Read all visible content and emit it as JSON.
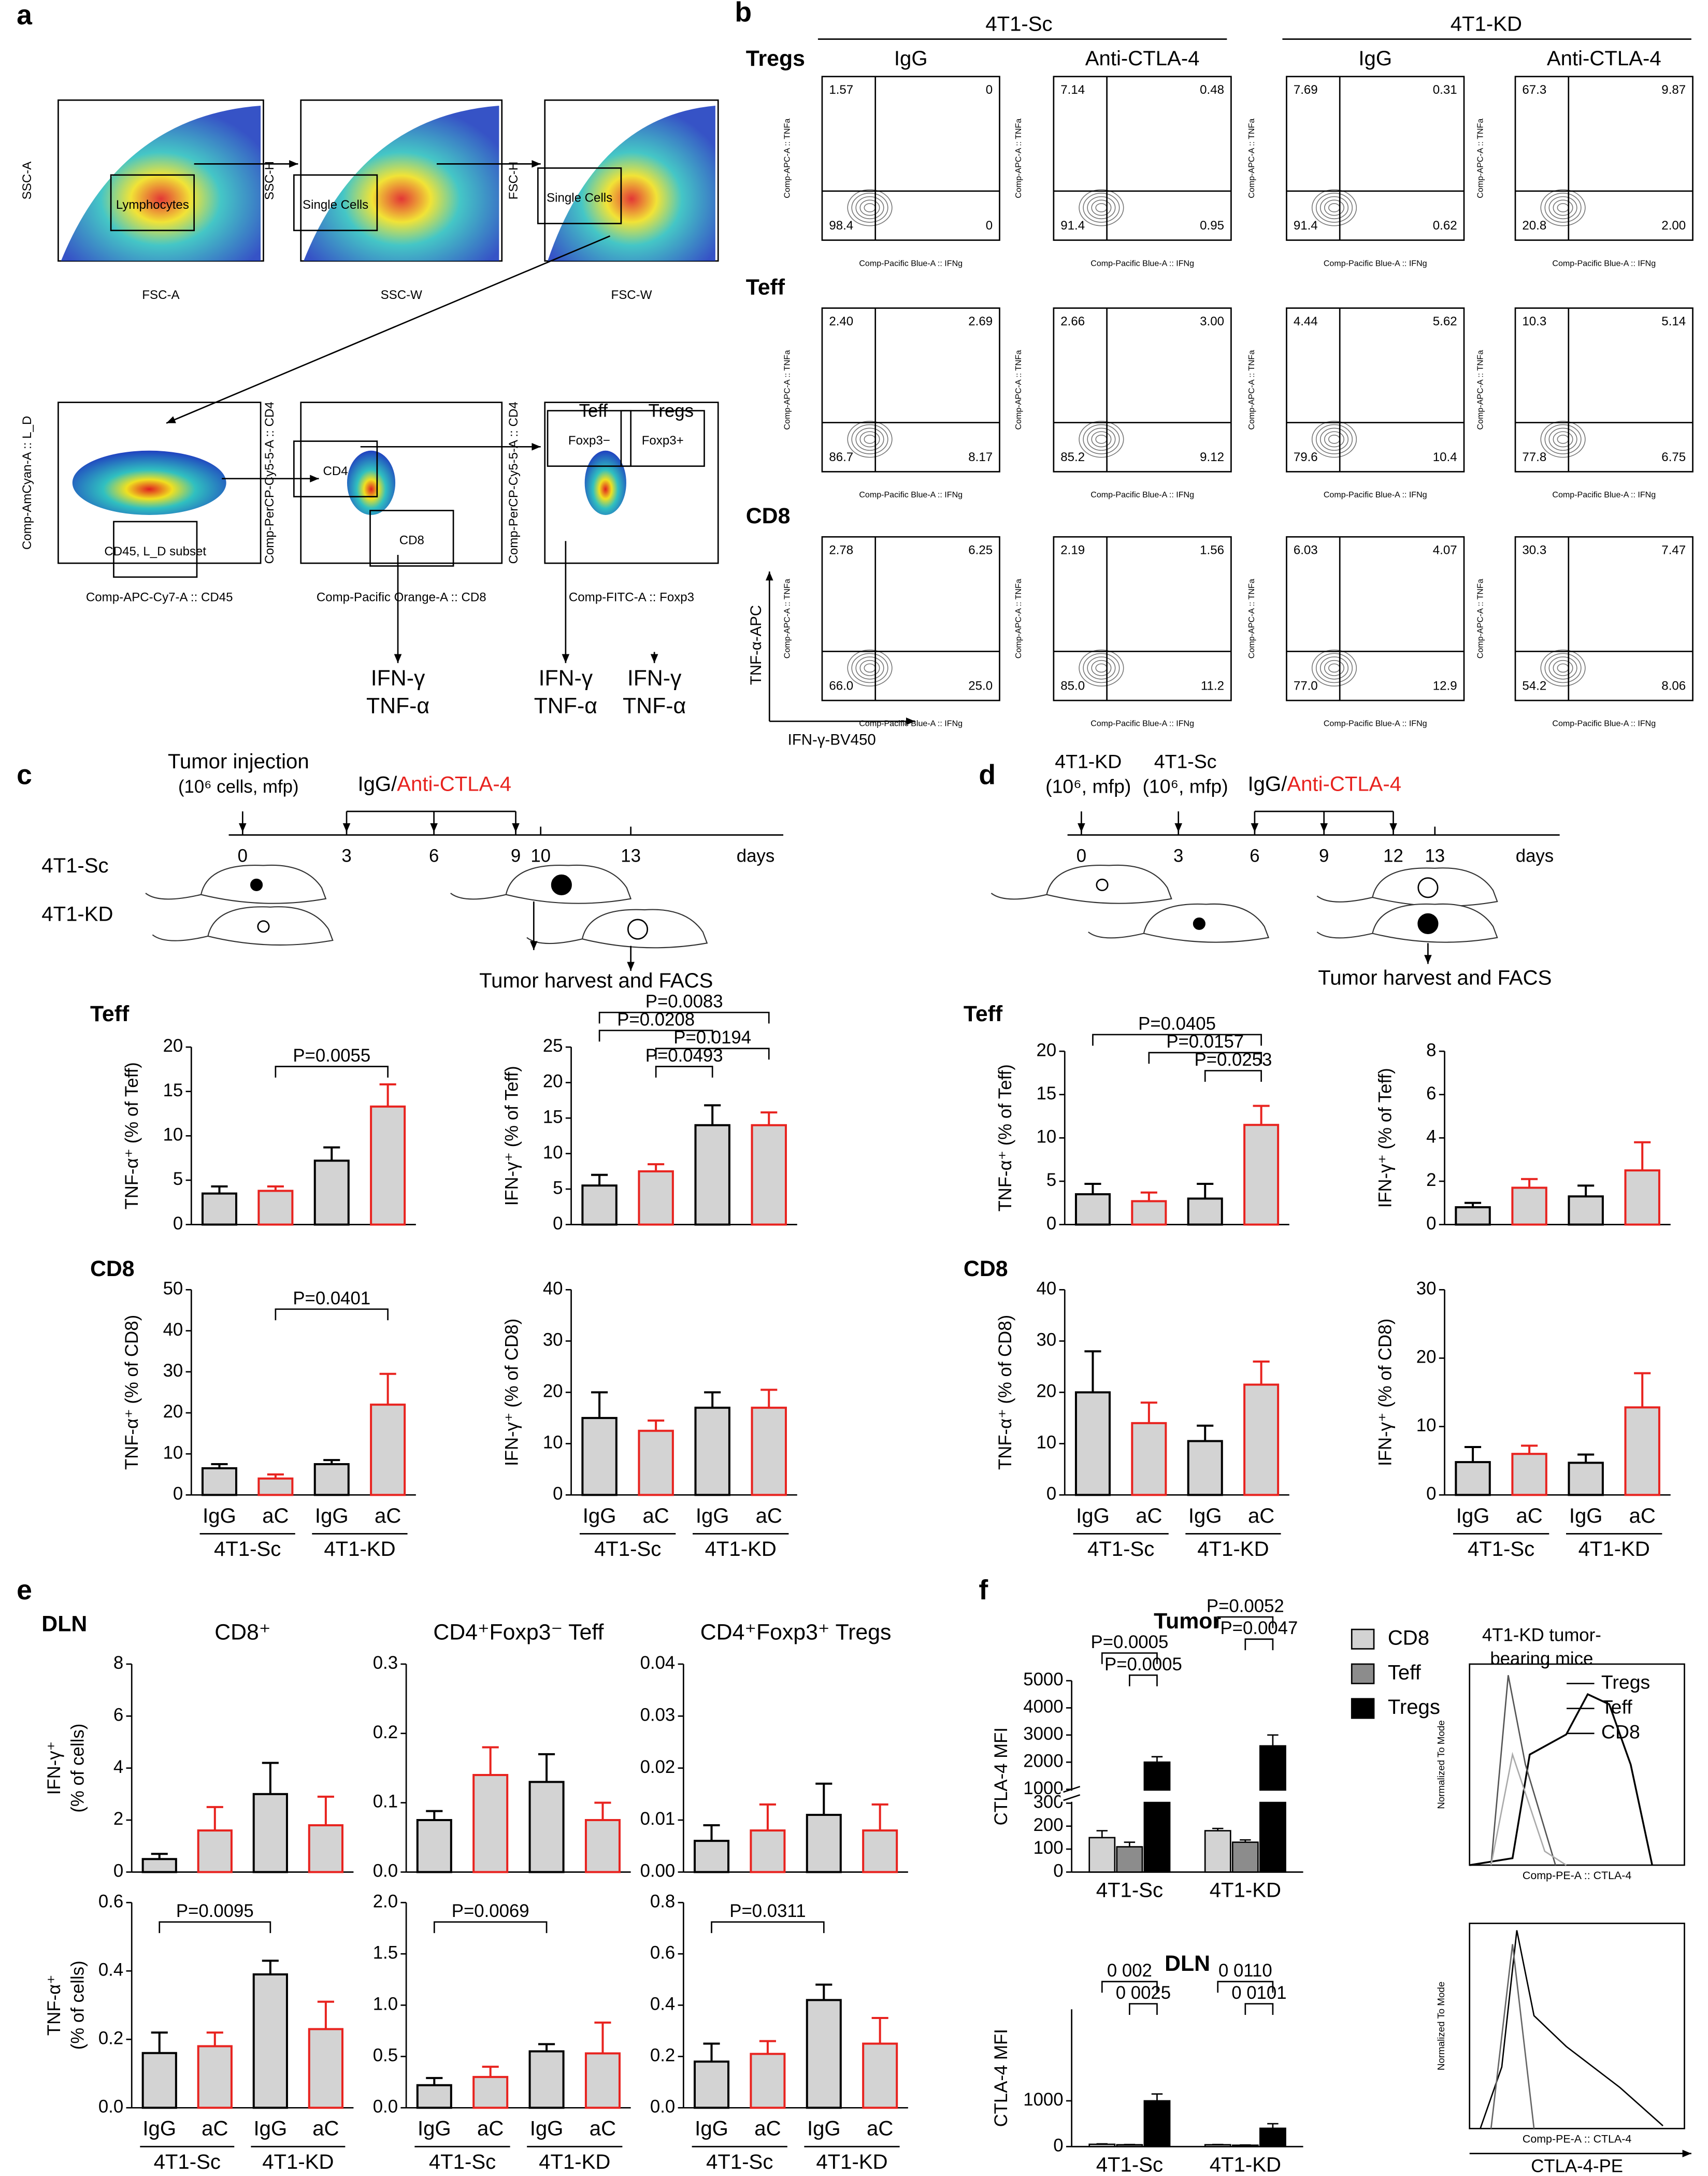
{
  "panel_labels": [
    "a",
    "b",
    "c",
    "d",
    "e",
    "f"
  ],
  "a": {
    "gates": [
      "Lymphocytes",
      "Single Cells",
      "Single Cells",
      "CD45, L_D subset",
      "CD4",
      "CD8",
      "Foxp3−",
      "Foxp3+"
    ],
    "x_labels": [
      "FSC-A",
      "SSC-W",
      "FSC-W",
      "Comp-APC-Cy7-A :: CD45",
      "Comp-Pacific Orange-A :: CD8",
      "Comp-FITC-A :: Foxp3"
    ],
    "y_labels": [
      "SSC-A",
      "SSC-H",
      "FSC-H",
      "Comp-AmCyan-A :: L_D",
      "Comp-PerCP-Cy5-5-A :: CD4",
      "Comp-PerCP-Cy5-5-A :: CD4"
    ],
    "gate_titles": [
      "Teff",
      "Tregs"
    ],
    "outputs": [
      "IFN-γ",
      "TNF-α"
    ]
  },
  "b": {
    "groups": [
      "4T1-Sc",
      "4T1-KD"
    ],
    "treatments": [
      "IgG",
      "Anti-CTLA-4",
      "IgG",
      "Anti-CTLA-4"
    ],
    "rows": [
      {
        "name": "Tregs",
        "quadrants": [
          [
            "1.57",
            "0",
            "98.4",
            "0"
          ],
          [
            "7.14",
            "0.48",
            "91.4",
            "0.95"
          ],
          [
            "7.69",
            "0.31",
            "91.4",
            "0.62"
          ],
          [
            "67.3",
            "9.87",
            "20.8",
            "2.00"
          ]
        ]
      },
      {
        "name": "Teff",
        "quadrants": [
          [
            "2.40",
            "2.69",
            "86.7",
            "8.17"
          ],
          [
            "2.66",
            "3.00",
            "85.2",
            "9.12"
          ],
          [
            "4.44",
            "5.62",
            "79.6",
            "10.4"
          ],
          [
            "10.3",
            "5.14",
            "77.8",
            "6.75"
          ]
        ]
      },
      {
        "name": "CD8",
        "quadrants": [
          [
            "2.78",
            "6.25",
            "66.0",
            "25.0"
          ],
          [
            "2.19",
            "1.56",
            "85.0",
            "11.2"
          ],
          [
            "6.03",
            "4.07",
            "77.0",
            "12.9"
          ],
          [
            "30.3",
            "7.47",
            "54.2",
            "8.06"
          ]
        ]
      }
    ],
    "x_label": "Comp-Pacific Blue-A :: IFNg",
    "y_label": "Comp-APC-A :: TNFa",
    "axis_x": "IFN-γ-BV450",
    "axis_y": "TNF-α-APC"
  },
  "c": {
    "injection": "Tumor injection",
    "injection_note": "(10⁶ cells, mfp)",
    "treatment": "IgG/",
    "treatment_drug": "Anti-CTLA-4",
    "days": [
      "0",
      "3",
      "6",
      "9",
      "10",
      "13"
    ],
    "days_label": "days",
    "mice": [
      "4T1-Sc",
      "4T1-KD"
    ],
    "harvest": "Tumor harvest and FACS",
    "row_labels": [
      "Teff",
      "CD8"
    ]
  },
  "d": {
    "injections": [
      {
        "line": "4T1-KD",
        "note": "(10⁶, mfp)"
      },
      {
        "line": "4T1-Sc",
        "note": "(10⁶, mfp)"
      }
    ],
    "treatment": "IgG/",
    "treatment_drug": "Anti-CTLA-4",
    "days": [
      "0",
      "3",
      "6",
      "9",
      "12",
      "13"
    ],
    "days_label": "days",
    "harvest": "Tumor harvest and FACS",
    "row_labels": [
      "Teff",
      "CD8"
    ]
  },
  "e": {
    "row_label": "DLN"
  },
  "f": {
    "histogram_title": [
      "4T1-KD tumor-",
      "bearing mice"
    ],
    "histogram_legend": [
      "Tregs",
      "Teff",
      "CD8"
    ],
    "histogram_y_label": "Normalized To Mode",
    "histogram_x_label": "Comp-PE-A :: CTLA-4",
    "histogram_axis": "CTLA-4-PE"
  },
  "chart_data": [
    {
      "type": "bar",
      "y_label": "TNF-α⁺ (% of Teff)",
      "values": [
        3.5,
        3.8,
        7.2,
        13.3
      ],
      "errors": [
        0.8,
        0.5,
        1.5,
        2.5
      ],
      "ylim": [
        0,
        20
      ],
      "yticks": [
        0,
        5,
        10,
        15,
        20
      ],
      "color": "#d3d3d3",
      "edge_colors": [
        "#000000",
        "#e8231f",
        "#000000",
        "#e8231f"
      ],
      "comparisons": [
        {
          "bars": [
            1,
            3
          ],
          "label": "P=0.0055"
        }
      ]
    },
    {
      "type": "bar",
      "y_label": "IFN-γ⁺ (% of Teff)",
      "values": [
        5.5,
        7.5,
        14,
        14
      ],
      "errors": [
        1.5,
        1,
        2.8,
        1.8
      ],
      "ylim": [
        0,
        25
      ],
      "yticks": [
        0,
        5,
        10,
        15,
        20,
        25
      ],
      "color": "#d3d3d3",
      "edge_colors": [
        "#000000",
        "#e8231f",
        "#000000",
        "#e8231f"
      ],
      "comparisons": [
        {
          "bars": [
            0,
            3
          ],
          "label": "P=0.0083"
        },
        {
          "bars": [
            0,
            2
          ],
          "label": "P=0.0208"
        },
        {
          "bars": [
            1,
            3
          ],
          "label": "P=0.0194"
        },
        {
          "bars": [
            1,
            2
          ],
          "label": "P=0.0493"
        }
      ]
    },
    {
      "type": "bar",
      "y_label": "TNF-α⁺ (% of CD8)",
      "categories": [
        "IgG",
        "aC",
        "IgG",
        "aC"
      ],
      "groups": [
        "4T1-Sc",
        "4T1-KD"
      ],
      "values": [
        6.5,
        4,
        7.5,
        22
      ],
      "errors": [
        1,
        1,
        1,
        7.5
      ],
      "ylim": [
        0,
        50
      ],
      "yticks": [
        0,
        10,
        20,
        30,
        40,
        50
      ],
      "color": "#d3d3d3",
      "edge_colors": [
        "#000000",
        "#e8231f",
        "#000000",
        "#e8231f"
      ],
      "comparisons": [
        {
          "bars": [
            1,
            3
          ],
          "label": "P=0.0401"
        }
      ]
    },
    {
      "type": "bar",
      "y_label": "IFN-γ⁺ (% of CD8)",
      "categories": [
        "IgG",
        "aC",
        "IgG",
        "aC"
      ],
      "groups": [
        "4T1-Sc",
        "4T1-KD"
      ],
      "values": [
        15,
        12.5,
        17,
        17
      ],
      "errors": [
        5,
        2,
        3,
        3.5
      ],
      "ylim": [
        0,
        40
      ],
      "yticks": [
        0,
        10,
        20,
        30,
        40
      ],
      "color": "#d3d3d3",
      "edge_colors": [
        "#000000",
        "#e8231f",
        "#000000",
        "#e8231f"
      ],
      "comparisons": []
    },
    {
      "type": "bar",
      "y_label": "TNF-α⁺ (% of Teff)",
      "values": [
        3.5,
        2.7,
        3,
        11.5
      ],
      "errors": [
        1.2,
        1,
        1.7,
        2.2
      ],
      "ylim": [
        0,
        20
      ],
      "yticks": [
        0,
        5,
        10,
        15,
        20
      ],
      "color": "#d3d3d3",
      "edge_colors": [
        "#000000",
        "#e8231f",
        "#000000",
        "#e8231f"
      ],
      "comparisons": [
        {
          "bars": [
            0,
            3
          ],
          "label": "P=0.0405"
        },
        {
          "bars": [
            1,
            3
          ],
          "label": "P=0.0157"
        },
        {
          "bars": [
            2,
            3
          ],
          "label": "P=0.0253"
        }
      ]
    },
    {
      "type": "bar",
      "y_label": "IFN-γ⁺ (% of Teff)",
      "values": [
        0.8,
        1.7,
        1.3,
        2.5
      ],
      "errors": [
        0.2,
        0.4,
        0.5,
        1.3
      ],
      "ylim": [
        0,
        8
      ],
      "yticks": [
        0,
        2,
        4,
        6,
        8
      ],
      "color": "#d3d3d3",
      "edge_colors": [
        "#000000",
        "#e8231f",
        "#000000",
        "#e8231f"
      ],
      "comparisons": []
    },
    {
      "type": "bar",
      "y_label": "TNF-α⁺ (% of CD8)",
      "categories": [
        "IgG",
        "aC",
        "IgG",
        "aC"
      ],
      "groups": [
        "4T1-Sc",
        "4T1-KD"
      ],
      "values": [
        20,
        14,
        10.5,
        21.5
      ],
      "errors": [
        8,
        4,
        3,
        4.5
      ],
      "ylim": [
        0,
        40
      ],
      "yticks": [
        0,
        10,
        20,
        30,
        40
      ],
      "color": "#d3d3d3",
      "edge_colors": [
        "#000000",
        "#e8231f",
        "#000000",
        "#e8231f"
      ],
      "comparisons": []
    },
    {
      "type": "bar",
      "y_label": "IFN-γ⁺ (% of CD8)",
      "categories": [
        "IgG",
        "aC",
        "IgG",
        "aC"
      ],
      "groups": [
        "4T1-Sc",
        "4T1-KD"
      ],
      "values": [
        4.8,
        6,
        4.7,
        12.8
      ],
      "errors": [
        2.2,
        1.2,
        1.2,
        5
      ],
      "ylim": [
        0,
        30
      ],
      "yticks": [
        0,
        10,
        20,
        30
      ],
      "color": "#d3d3d3",
      "edge_colors": [
        "#000000",
        "#e8231f",
        "#000000",
        "#e8231f"
      ],
      "comparisons": []
    },
    {
      "type": "bar",
      "title": "CD8⁺",
      "y_label": [
        "IFN-γ⁺",
        "(% of cells)"
      ],
      "values": [
        0.5,
        1.6,
        3.0,
        1.8
      ],
      "errors": [
        0.2,
        0.9,
        1.2,
        1.1
      ],
      "ylim": [
        0,
        8
      ],
      "yticks": [
        0,
        2,
        4,
        6,
        8
      ],
      "color": "#d3d3d3",
      "edge_colors": [
        "#000000",
        "#e8231f",
        "#000000",
        "#e8231f"
      ],
      "comparisons": []
    },
    {
      "type": "bar",
      "title": "CD4⁺Foxp3⁻ Teff",
      "values": [
        0.075,
        0.14,
        0.13,
        0.075
      ],
      "errors": [
        0.013,
        0.04,
        0.04,
        0.025
      ],
      "ylim": [
        0,
        0.3
      ],
      "yticks": [
        {
          "value": 0,
          "label": "0.0"
        },
        0.1,
        0.2,
        0.3
      ],
      "color": "#d3d3d3",
      "edge_colors": [
        "#000000",
        "#e8231f",
        "#000000",
        "#e8231f"
      ],
      "comparisons": []
    },
    {
      "type": "bar",
      "title": "CD4⁺Foxp3⁺ Tregs",
      "values": [
        0.006,
        0.008,
        0.011,
        0.008
      ],
      "errors": [
        0.003,
        0.005,
        0.006,
        0.005
      ],
      "ylim": [
        0,
        0.04
      ],
      "yticks": [
        {
          "value": 0,
          "label": "0.00"
        },
        0.01,
        0.02,
        0.03,
        0.04
      ],
      "color": "#d3d3d3",
      "edge_colors": [
        "#000000",
        "#e8231f",
        "#000000",
        "#e8231f"
      ],
      "comparisons": []
    },
    {
      "type": "bar",
      "y_label": [
        "TNF-α⁺",
        "(% of cells)"
      ],
      "categories": [
        "IgG",
        "aC",
        "IgG",
        "aC"
      ],
      "groups": [
        "4T1-Sc",
        "4T1-KD"
      ],
      "values": [
        0.16,
        0.18,
        0.39,
        0.23
      ],
      "errors": [
        0.06,
        0.04,
        0.04,
        0.08
      ],
      "ylim": [
        0,
        0.6
      ],
      "yticks": [
        {
          "value": 0,
          "label": "0.0"
        },
        0.2,
        0.4,
        0.6
      ],
      "color": "#d3d3d3",
      "edge_colors": [
        "#000000",
        "#e8231f",
        "#000000",
        "#e8231f"
      ],
      "comparisons": [
        {
          "bars": [
            0,
            2
          ],
          "label": "P=0.0095"
        }
      ]
    },
    {
      "type": "bar",
      "categories": [
        "IgG",
        "aC",
        "IgG",
        "aC"
      ],
      "groups": [
        "4T1-Sc",
        "4T1-KD"
      ],
      "values": [
        0.22,
        0.3,
        0.55,
        0.53
      ],
      "errors": [
        0.07,
        0.1,
        0.07,
        0.3
      ],
      "ylim": [
        0,
        2
      ],
      "yticks": [
        {
          "value": 0,
          "label": "0.0"
        },
        0.5,
        {
          "value": 1,
          "label": "1.0"
        },
        1.5,
        {
          "value": 2,
          "label": "2.0"
        }
      ],
      "color": "#d3d3d3",
      "edge_colors": [
        "#000000",
        "#e8231f",
        "#000000",
        "#e8231f"
      ],
      "comparisons": [
        {
          "bars": [
            0,
            2
          ],
          "label": "P=0.0069"
        }
      ]
    },
    {
      "type": "bar",
      "categories": [
        "IgG",
        "aC",
        "IgG",
        "aC"
      ],
      "groups": [
        "4T1-Sc",
        "4T1-KD"
      ],
      "values": [
        0.18,
        0.21,
        0.42,
        0.25
      ],
      "errors": [
        0.07,
        0.05,
        0.06,
        0.1
      ],
      "ylim": [
        0,
        0.8
      ],
      "yticks": [
        {
          "value": 0,
          "label": "0.0"
        },
        0.2,
        0.4,
        0.6,
        0.8
      ],
      "color": "#d3d3d3",
      "edge_colors": [
        "#000000",
        "#e8231f",
        "#000000",
        "#e8231f"
      ],
      "comparisons": [
        {
          "bars": [
            0,
            2
          ],
          "label": "P=0.0311"
        }
      ]
    },
    {
      "type": "grouped_bar",
      "title": "Tumor",
      "y_label": "CTLA-4 MFI",
      "categories": [
        "4T1-Sc",
        "4T1-KD"
      ],
      "series": [
        {
          "name": "CD8",
          "color": "#d3d3d3",
          "values": [
            150,
            180
          ],
          "errors": [
            30,
            10
          ]
        },
        {
          "name": "Teff",
          "color": "#8c8c8c",
          "values": [
            110,
            130
          ],
          "errors": [
            20,
            10
          ]
        },
        {
          "name": "Tregs",
          "color": "#000000",
          "values": [
            2000,
            2600
          ],
          "errors": [
            200,
            400
          ]
        }
      ],
      "ylim": [
        0,
        5000
      ],
      "y_break": [
        300,
        1000
      ],
      "yticks": [
        0,
        100,
        200,
        300,
        1000,
        2000,
        3000,
        4000,
        5000
      ],
      "legend": "right",
      "comparisons": [
        {
          "category": 0,
          "series": [
            0,
            2
          ],
          "label": "P=0.0005"
        },
        {
          "category": 0,
          "series": [
            1,
            2
          ],
          "label": "P=0.0005"
        },
        {
          "category": 1,
          "series": [
            0,
            2
          ],
          "label": "P=0.0052"
        },
        {
          "category": 1,
          "series": [
            1,
            2
          ],
          "label": "P=0.0047"
        }
      ]
    },
    {
      "type": "grouped_bar",
      "title": "DLN",
      "y_label": "CTLA-4 MFI",
      "categories": [
        "4T1-Sc",
        "4T1-KD"
      ],
      "series": [
        {
          "color": "#d3d3d3",
          "values": [
            50,
            40
          ],
          "errors": [
            10,
            5
          ]
        },
        {
          "color": "#8c8c8c",
          "values": [
            40,
            30
          ],
          "errors": [
            5,
            5
          ]
        },
        {
          "color": "#000000",
          "values": [
            1000,
            400
          ],
          "errors": [
            150,
            100
          ]
        }
      ],
      "ylim": [
        0,
        3000
      ],
      "yticks": [
        0,
        1000
      ],
      "comparisons": [
        {
          "category": 0,
          "series": [
            0,
            2
          ],
          "label": "0 002"
        },
        {
          "category": 0,
          "series": [
            1,
            2
          ],
          "label": "0 0025"
        },
        {
          "category": 1,
          "series": [
            0,
            2
          ],
          "label": "0 0110"
        },
        {
          "category": 1,
          "series": [
            1,
            2
          ],
          "label": "0 0101"
        }
      ]
    }
  ]
}
